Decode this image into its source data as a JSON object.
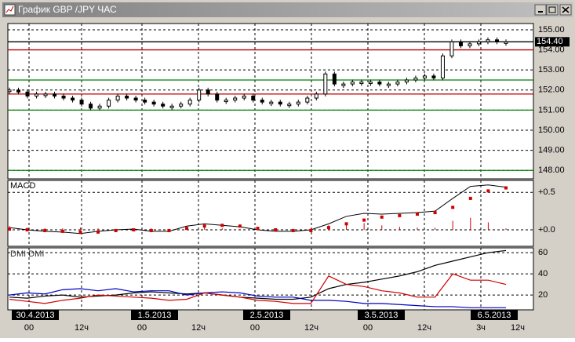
{
  "window": {
    "title": "График GBP /JPY ЧАС"
  },
  "price_panel": {
    "ylim": [
      147.58,
      155.31
    ],
    "yticks": [
      {
        "value": 155,
        "label": "155.00"
      },
      {
        "value": 154,
        "label": "154.00"
      },
      {
        "value": 153,
        "label": "153.00"
      },
      {
        "value": 152,
        "label": "152.00"
      },
      {
        "value": 151,
        "label": "151.00"
      },
      {
        "value": 150,
        "label": "150.00"
      },
      {
        "value": 149,
        "label": "149.00"
      },
      {
        "value": 148,
        "label": "148.00"
      }
    ],
    "current": {
      "value": 154.4,
      "label": "154.40"
    },
    "levels": [
      {
        "value": 154.4,
        "color": "#000000"
      },
      {
        "value": 154.0,
        "color": "#c00000"
      },
      {
        "value": 152.5,
        "color": "#008000"
      },
      {
        "value": 151.8,
        "color": "#c00000"
      },
      {
        "value": 151.0,
        "color": "#008000"
      },
      {
        "value": 148.0,
        "color": "#008000"
      }
    ],
    "close": [
      152.0,
      151.9,
      151.7,
      151.8,
      151.8,
      151.7,
      151.6,
      151.5,
      151.3,
      151.1,
      151.2,
      151.5,
      151.7,
      151.6,
      151.5,
      151.4,
      151.3,
      151.2,
      151.2,
      151.3,
      151.5,
      152.0,
      151.8,
      151.5,
      151.5,
      151.6,
      151.7,
      151.5,
      151.4,
      151.4,
      151.3,
      151.3,
      151.4,
      151.6,
      151.8,
      152.8,
      152.3,
      152.3,
      152.4,
      152.4,
      152.4,
      152.3,
      152.3,
      152.4,
      152.5,
      152.6,
      152.7,
      152.6,
      153.7,
      154.4,
      154.2,
      154.3,
      154.4,
      154.5,
      154.4,
      154.4
    ]
  },
  "macd_panel": {
    "title": "MACD",
    "ylim": [
      -0.22,
      0.66
    ],
    "yticks": [
      {
        "value": 0.5,
        "label": "+0.5"
      },
      {
        "value": 0,
        "label": "+0.0"
      }
    ],
    "macd": [
      0.03,
      0.0,
      -0.02,
      -0.03,
      -0.05,
      -0.02,
      0.0,
      0.01,
      -0.02,
      -0.02,
      0.05,
      0.08,
      0.06,
      0.04,
      0.0,
      -0.02,
      -0.02,
      0.0,
      0.08,
      0.18,
      0.22,
      0.21,
      0.22,
      0.23,
      0.25,
      0.42,
      0.58,
      0.6,
      0.57
    ],
    "signal": [
      0.01,
      0.0,
      -0.01,
      -0.02,
      -0.03,
      -0.03,
      -0.01,
      0.0,
      -0.01,
      -0.01,
      0.02,
      0.05,
      0.06,
      0.05,
      0.02,
      0.0,
      -0.01,
      -0.01,
      0.03,
      0.08,
      0.13,
      0.17,
      0.19,
      0.21,
      0.23,
      0.3,
      0.42,
      0.52,
      0.56
    ],
    "histogram": [
      0.05,
      0.03,
      0.02,
      0.02,
      0.03,
      0.02,
      0.01,
      0.01,
      0.02,
      0.01,
      0.03,
      0.03,
      0.02,
      0.01,
      0.02,
      0.01,
      0.01,
      0.02,
      0.06,
      0.1,
      0.09,
      0.06,
      0.04,
      0.03,
      0.03,
      0.12,
      0.16,
      0.1,
      0.02
    ]
  },
  "dmi_panel": {
    "title": "DMI DMI",
    "ylim": [
      6,
      64.5
    ],
    "yticks": [
      60,
      40,
      20
    ],
    "series": [
      {
        "color": "#000000",
        "values": [
          18,
          17,
          19,
          20,
          18,
          19,
          20,
          22,
          23,
          22,
          21,
          22,
          20,
          18,
          17,
          16,
          16,
          18,
          26,
          30,
          32,
          35,
          38,
          42,
          48,
          52,
          56,
          60,
          62
        ]
      },
      {
        "color": "#0000c0",
        "values": [
          20,
          22,
          21,
          25,
          26,
          24,
          26,
          23,
          24,
          24,
          20,
          22,
          23,
          22,
          19,
          18,
          18,
          15,
          15,
          14,
          12,
          12,
          11,
          10,
          9,
          9,
          8,
          8,
          8
        ]
      },
      {
        "color": "#d00000",
        "values": [
          16,
          14,
          12,
          15,
          17,
          20,
          19,
          18,
          17,
          15,
          16,
          22,
          20,
          18,
          15,
          14,
          12,
          12,
          38,
          30,
          28,
          24,
          22,
          18,
          18,
          40,
          34,
          34,
          30
        ]
      }
    ]
  },
  "x_axis": {
    "dates": [
      "30.4.2013",
      "1.5.2013",
      "2.5.2013",
      "3.5.2013",
      "6.5.2013"
    ],
    "hours": [
      "00",
      "12ч",
      "00",
      "12ч",
      "00",
      "12ч",
      "00",
      "12ч",
      "3ч",
      "12ч"
    ]
  }
}
